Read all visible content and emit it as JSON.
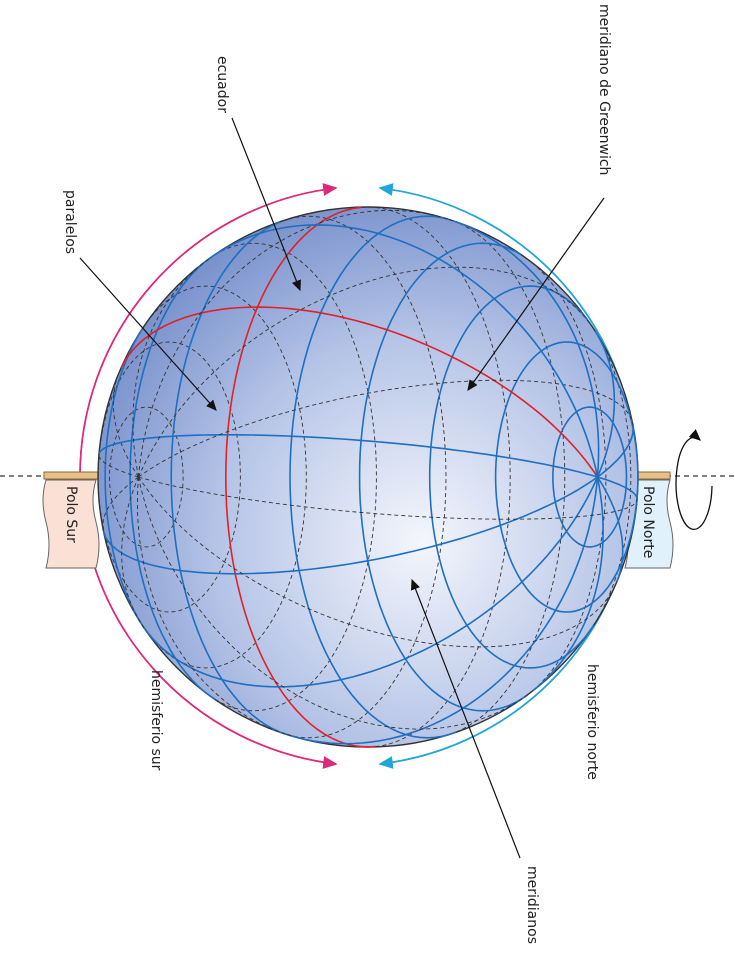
{
  "labels": {
    "greenwich": "meridiano de Greenwich",
    "ecuador": "ecuador",
    "paralelos": "paralelos",
    "meridianos": "meridianos",
    "hemisferio_sur": "hemisferio sur",
    "hemisferio_norte": "hemisferio norte",
    "polo_sur": "Polo Sur",
    "polo_norte": "Polo Norte"
  }
}
